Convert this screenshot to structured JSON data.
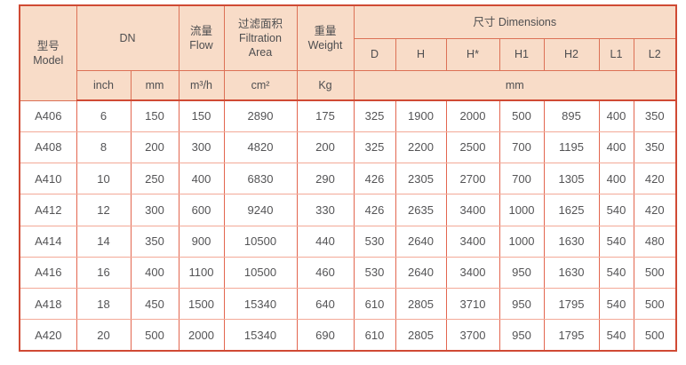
{
  "table": {
    "header": {
      "model": "型号\nModel",
      "dn": "DN",
      "flow": "流量\nFlow",
      "filtration_area": "过滤面积\nFiltration\nArea",
      "weight": "重量\nWeight",
      "dimensions": "尺寸 Dimensions",
      "dim_cols": [
        "D",
        "H",
        "H*",
        "H1",
        "H2",
        "L1",
        "L2"
      ],
      "units": {
        "inch": "inch",
        "mm": "mm",
        "flow": "m³/h",
        "area": "cm²",
        "weight": "Kg",
        "dims": "mm"
      }
    },
    "rows": [
      [
        "A406",
        "6",
        "150",
        "150",
        "2890",
        "175",
        "325",
        "1900",
        "2000",
        "500",
        "895",
        "400",
        "350"
      ],
      [
        "A408",
        "8",
        "200",
        "300",
        "4820",
        "200",
        "325",
        "2200",
        "2500",
        "700",
        "1195",
        "400",
        "350"
      ],
      [
        "A410",
        "10",
        "250",
        "400",
        "6830",
        "290",
        "426",
        "2305",
        "2700",
        "700",
        "1305",
        "400",
        "420"
      ],
      [
        "A412",
        "12",
        "300",
        "600",
        "9240",
        "330",
        "426",
        "2635",
        "3400",
        "1000",
        "1625",
        "540",
        "420"
      ],
      [
        "A414",
        "14",
        "350",
        "900",
        "10500",
        "440",
        "530",
        "2640",
        "3400",
        "1000",
        "1630",
        "540",
        "480"
      ],
      [
        "A416",
        "16",
        "400",
        "1100",
        "10500",
        "460",
        "530",
        "2640",
        "3400",
        "950",
        "1630",
        "540",
        "500"
      ],
      [
        "A418",
        "18",
        "450",
        "1500",
        "15340",
        "640",
        "610",
        "2805",
        "3710",
        "950",
        "1795",
        "540",
        "500"
      ],
      [
        "A420",
        "20",
        "500",
        "2000",
        "15340",
        "690",
        "610",
        "2805",
        "3700",
        "950",
        "1795",
        "540",
        "500"
      ]
    ]
  },
  "colors": {
    "header_background": "#f8dcc8",
    "outer_border": "#d04a34",
    "header_grid": "#dc7156",
    "data_vertical_grid": "#e3664f",
    "data_horizontal_grid": "#f3a997",
    "text": "#545456"
  }
}
